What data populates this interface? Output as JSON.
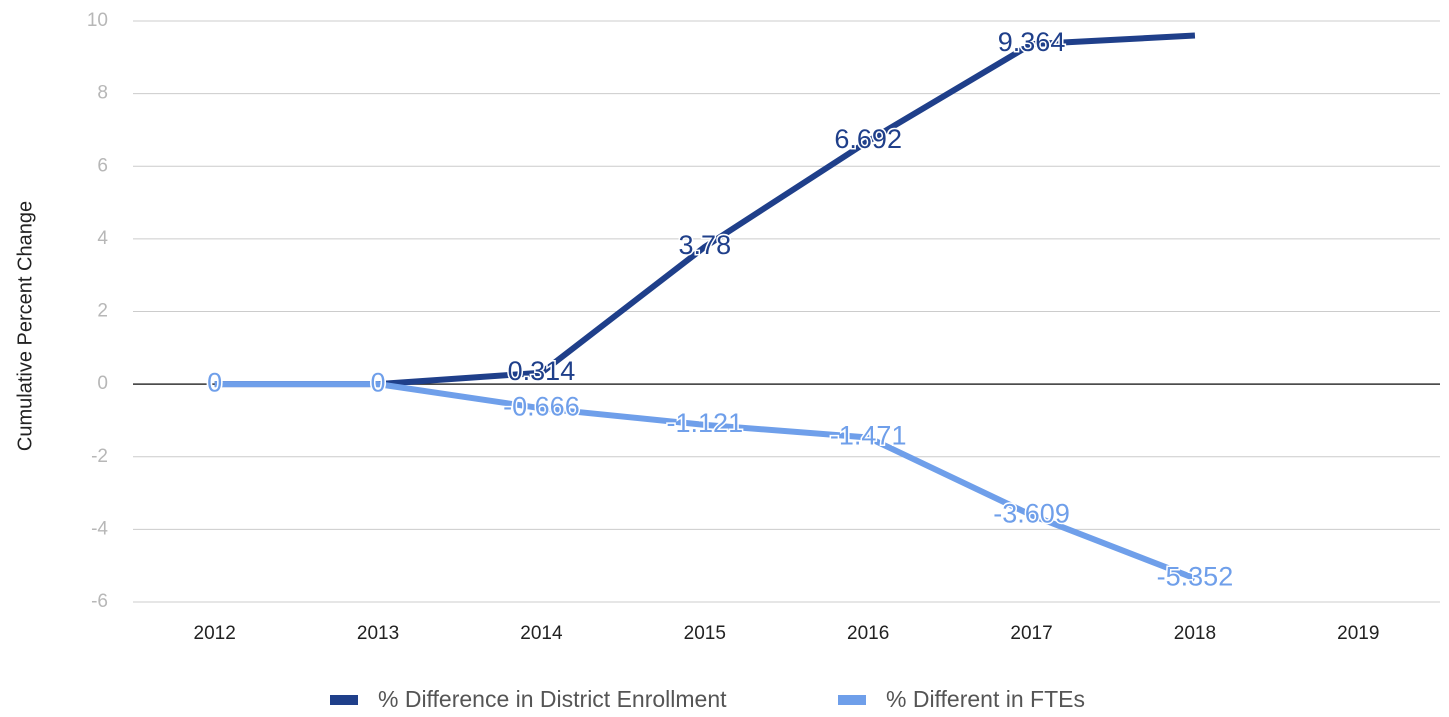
{
  "chart_data": {
    "type": "line",
    "y_label": "Cumulative Percent Change",
    "categories": [
      "2012",
      "2013",
      "2014",
      "2015",
      "2016",
      "2017",
      "2018",
      "2019"
    ],
    "series": [
      {
        "name": "% Difference in District Enrollment",
        "color": "#1f3f8a",
        "values": [
          0,
          0,
          0.314,
          3.78,
          6.692,
          9.364,
          9.6,
          null
        ],
        "value_labels": [
          "0",
          "0",
          "0.314",
          "3.78",
          "6.692",
          "9.364",
          null,
          null
        ]
      },
      {
        "name": "% Different in FTEs",
        "color": "#6f9fea",
        "values": [
          0,
          0,
          -0.666,
          -1.121,
          -1.471,
          -3.609,
          -5.352,
          null
        ],
        "value_labels": [
          "0",
          "0",
          "-0.666",
          "-1.121",
          "-1.471",
          "-3.609",
          "-5.352",
          null
        ]
      }
    ],
    "ylim": [
      -6,
      10
    ],
    "yticks": [
      -6,
      -4,
      -2,
      0,
      2,
      4,
      6,
      8,
      10
    ],
    "grid": true,
    "legend": "bottom"
  }
}
